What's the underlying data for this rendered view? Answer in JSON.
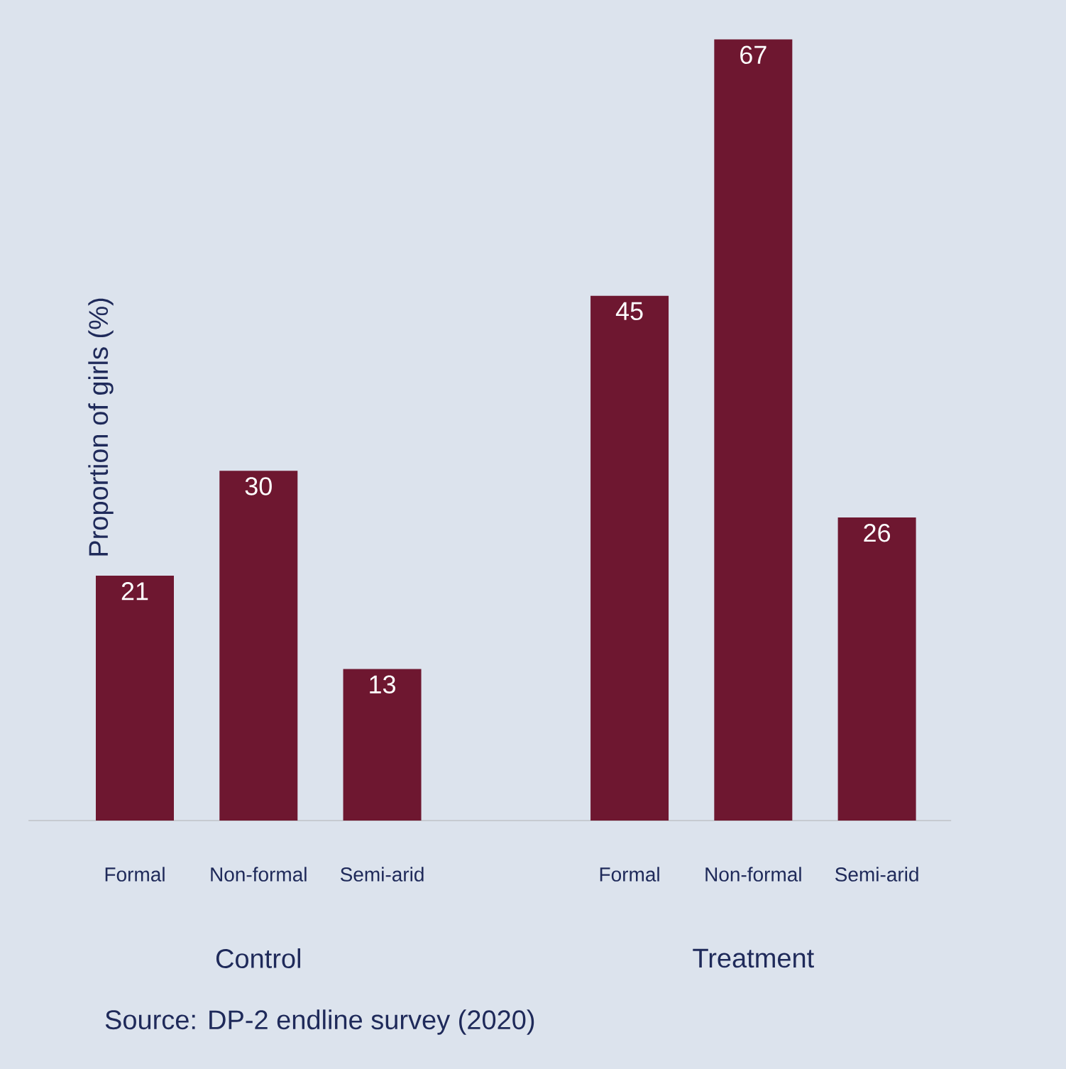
{
  "chart_data": {
    "type": "bar",
    "categories": [
      "Formal",
      "Non-formal",
      "Semi-arid",
      null,
      "Formal",
      "Non-formal",
      "Semi-arid"
    ],
    "values": [
      21,
      30,
      13,
      null,
      45,
      67,
      26
    ],
    "color": "#6e1730",
    "data_labels": true,
    "ylabel": "Proportion of girls (%)",
    "annotations": [
      "Control",
      "Treatment",
      "Source: DP-2 endline survey (2020)"
    ]
  }
}
